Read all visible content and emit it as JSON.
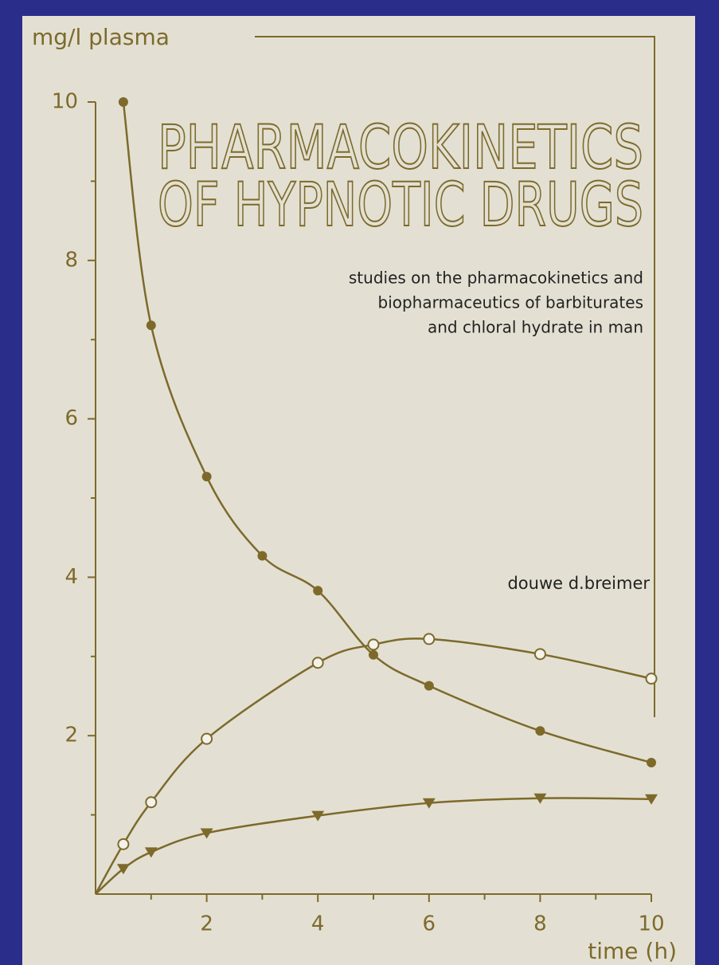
{
  "chart_data": {
    "type": "line",
    "title": [
      "PHARMACOKINETICS",
      "OF HYPNOTIC DRUGS"
    ],
    "subtitle": [
      "studies on the pharmacokinetics and",
      "biopharmaceutics of barbiturates",
      "and chloral hydrate in man"
    ],
    "author": "douwe d.breimer",
    "ylabel": "mg/l plasma",
    "xlabel": "time (h)",
    "xlim": [
      0,
      10
    ],
    "ylim": [
      0,
      10
    ],
    "xticks": [
      2,
      4,
      6,
      8,
      10
    ],
    "yticks": [
      2,
      4,
      6,
      8,
      10
    ],
    "xminor": [
      1,
      3,
      5,
      7,
      9
    ],
    "yminor": [
      1,
      3,
      5,
      7,
      9
    ],
    "color": "#7d6a2b",
    "series": [
      {
        "marker": "filled-circle",
        "x": [
          0.5,
          1,
          2,
          3,
          4,
          5,
          6,
          8,
          10
        ],
        "values": [
          10,
          7.18,
          5.27,
          4.27,
          3.83,
          3.02,
          2.63,
          2.06,
          1.66
        ]
      },
      {
        "marker": "open-circle",
        "x": [
          0,
          0.5,
          1,
          2,
          4,
          5,
          6,
          8,
          10
        ],
        "values": [
          0,
          0.63,
          1.16,
          1.96,
          2.92,
          3.15,
          3.22,
          3.03,
          2.72
        ]
      },
      {
        "marker": "triangle",
        "x": [
          0,
          0.5,
          1,
          2,
          4,
          6,
          8,
          10
        ],
        "values": [
          0,
          0.32,
          0.53,
          0.77,
          0.99,
          1.15,
          1.21,
          1.2
        ]
      }
    ]
  }
}
